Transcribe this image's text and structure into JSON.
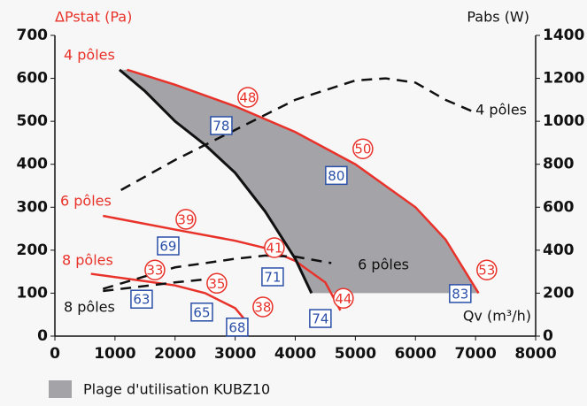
{
  "chart_data": {
    "type": "line",
    "ylabel": "ΔPstat (Pa)",
    "y2label": "Pabs (W)",
    "xlabel": "Qv (m³/h)",
    "xlim": [
      0,
      8000
    ],
    "xticks": [
      0,
      1000,
      2000,
      3000,
      4000,
      5000,
      6000,
      7000,
      8000
    ],
    "ylim": [
      0,
      700
    ],
    "yticks": [
      0,
      100,
      200,
      300,
      400,
      500,
      600,
      700
    ],
    "y2lim": [
      0,
      1400
    ],
    "y2ticks": [
      0,
      200,
      400,
      600,
      800,
      1000,
      1200,
      1400
    ],
    "grid": false,
    "area": {
      "name": "Plage d'utilisation KUBZ10",
      "color": "#a3a3a8",
      "x": [
        1075,
        1500,
        2000,
        2500,
        3000,
        3500,
        4000,
        4270,
        7050,
        6500,
        6000,
        5000,
        4000,
        3000,
        2000,
        1200
      ],
      "y": [
        620,
        570,
        500,
        445,
        380,
        290,
        180,
        100,
        100,
        225,
        300,
        400,
        475,
        535,
        585,
        620
      ]
    },
    "series": [
      {
        "name": "4 pôles",
        "color": "#e8322a",
        "style": "solid",
        "x": [
          1200,
          2000,
          3000,
          4000,
          5000,
          6000,
          6500,
          7050
        ],
        "values": [
          620,
          585,
          535,
          475,
          400,
          300,
          225,
          100
        ]
      },
      {
        "name": "6 pôles",
        "color": "#e8322a",
        "style": "solid",
        "x": [
          800,
          2000,
          3000,
          3500,
          4000,
          4500,
          4750
        ],
        "values": [
          280,
          248,
          222,
          205,
          175,
          125,
          60
        ]
      },
      {
        "name": "8 pôles",
        "color": "#e8322a",
        "style": "solid",
        "x": [
          600,
          1500,
          2000,
          2500,
          3000,
          3150
        ],
        "values": [
          145,
          128,
          118,
          100,
          65,
          40
        ]
      },
      {
        "name": "4 pôles",
        "color": "#111111",
        "style": "dashed",
        "axis": "y2",
        "x": [
          1100,
          2000,
          3000,
          4000,
          5000,
          5500,
          6000,
          6500,
          7000
        ],
        "values": [
          680,
          820,
          960,
          1100,
          1190,
          1200,
          1180,
          1100,
          1040
        ]
      },
      {
        "name": "6 pôles",
        "color": "#111111",
        "style": "dashed",
        "axis": "y2",
        "x": [
          800,
          2000,
          3000,
          3500,
          4000,
          4600
        ],
        "values": [
          220,
          320,
          360,
          375,
          370,
          340
        ]
      },
      {
        "name": "8 pôles",
        "color": "#111111",
        "style": "dashed",
        "axis": "y2",
        "x": [
          800,
          2000,
          2700
        ],
        "values": [
          210,
          250,
          270
        ]
      },
      {
        "color": "#111111",
        "style": "solid",
        "x": [
          1075,
          1500,
          2000,
          2500,
          3000,
          3500,
          4000,
          4270
        ],
        "values": [
          620,
          570,
          500,
          445,
          380,
          290,
          180,
          100
        ]
      }
    ],
    "annotations": [
      {
        "text": "48",
        "x": 3210,
        "y": 556,
        "shape": "circle"
      },
      {
        "text": "50",
        "x": 5125,
        "y": 436,
        "shape": "circle"
      },
      {
        "text": "53",
        "x": 7187,
        "y": 154,
        "shape": "circle"
      },
      {
        "text": "39",
        "x": 2180,
        "y": 272,
        "shape": "circle"
      },
      {
        "text": "41",
        "x": 3652,
        "y": 206,
        "shape": "circle"
      },
      {
        "text": "44",
        "x": 4801,
        "y": 88,
        "shape": "circle"
      },
      {
        "text": "33",
        "x": 1664,
        "y": 154,
        "shape": "circle"
      },
      {
        "text": "35",
        "x": 2695,
        "y": 123,
        "shape": "circle"
      },
      {
        "text": "38",
        "x": 3461,
        "y": 68,
        "shape": "circle"
      },
      {
        "text": "78",
        "x": 2769,
        "y": 490,
        "shape": "box"
      },
      {
        "text": "80",
        "x": 4683,
        "y": 374,
        "shape": "box"
      },
      {
        "text": "83",
        "x": 6745,
        "y": 99,
        "shape": "box"
      },
      {
        "text": "69",
        "x": 1885,
        "y": 210,
        "shape": "box"
      },
      {
        "text": "71",
        "x": 3623,
        "y": 138,
        "shape": "box"
      },
      {
        "text": "74",
        "x": 4418,
        "y": 41,
        "shape": "box"
      },
      {
        "text": "63",
        "x": 1443,
        "y": 86,
        "shape": "box"
      },
      {
        "text": "65",
        "x": 2445,
        "y": 56,
        "shape": "box"
      },
      {
        "text": "68",
        "x": 3034,
        "y": 21,
        "shape": "box"
      }
    ]
  }
}
